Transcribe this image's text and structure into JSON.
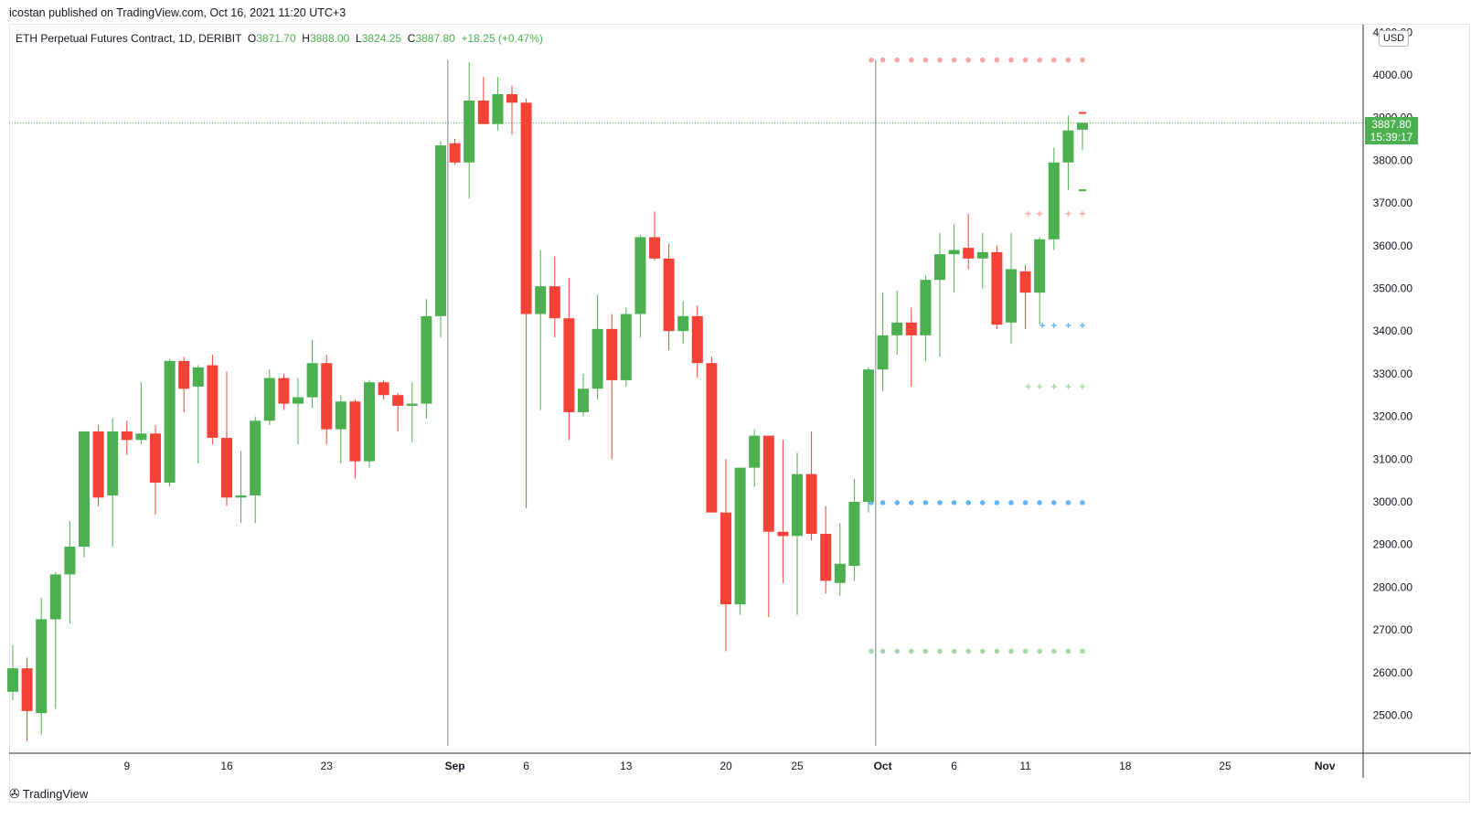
{
  "header": {
    "published": "icostan published on TradingView.com, Oct 16, 2021 11:20 UTC+3"
  },
  "legend": {
    "symbol": "ETH Perpetual Futures Contract, 1D, DERIBIT",
    "o_label": "O",
    "o_value": "3871.70",
    "h_label": "H",
    "h_value": "3888.00",
    "l_label": "L",
    "l_value": "3824.25",
    "c_label": "C",
    "c_value": "3887.80",
    "change": "+18.25 (+0.47%)"
  },
  "price_axis": {
    "currency": "USD",
    "last_price": "3887.80",
    "countdown": "15:39:17",
    "ticks": [
      "2500.00",
      "2600.00",
      "2700.00",
      "2800.00",
      "2900.00",
      "3000.00",
      "3100.00",
      "3200.00",
      "3300.00",
      "3400.00",
      "3500.00",
      "3600.00",
      "3700.00",
      "3800.00",
      "3900.00",
      "4000.00",
      "4100.00"
    ]
  },
  "time_axis": {
    "labels": [
      {
        "text": "9",
        "day": 9,
        "bold": false
      },
      {
        "text": "16",
        "day": 16,
        "bold": false
      },
      {
        "text": "23",
        "day": 23,
        "bold": false
      },
      {
        "text": "Sep",
        "day": 32,
        "bold": true
      },
      {
        "text": "6",
        "day": 37,
        "bold": false
      },
      {
        "text": "13",
        "day": 44,
        "bold": false
      },
      {
        "text": "20",
        "day": 51,
        "bold": false
      },
      {
        "text": "25",
        "day": 56,
        "bold": false
      },
      {
        "text": "Oct",
        "day": 62,
        "bold": true
      },
      {
        "text": "6",
        "day": 67,
        "bold": false
      },
      {
        "text": "11",
        "day": 72,
        "bold": false
      },
      {
        "text": "18",
        "day": 79,
        "bold": false
      },
      {
        "text": "25",
        "day": 86,
        "bold": false
      },
      {
        "text": "Nov",
        "day": 93,
        "bold": true
      }
    ]
  },
  "colors": {
    "up": "#4caf50",
    "down": "#f44336",
    "grid_separator": "#9598a1",
    "last_price_line": "#4caf50",
    "level_red": "#f7a5a5",
    "level_blue": "#64b5f6",
    "level_green": "#a5d6a7"
  },
  "chart_data": {
    "type": "candlestick",
    "title": "ETH Perpetual Futures Contract, 1D, DERIBIT",
    "x_unit": "days from Aug 1, 2021",
    "ylim": [
      2430,
      4110
    ],
    "candles": [
      {
        "d": 1,
        "o": 2555,
        "h": 2665,
        "l": 2535,
        "c": 2610
      },
      {
        "d": 2,
        "o": 2610,
        "h": 2635,
        "l": 2440,
        "c": 2510
      },
      {
        "d": 3,
        "o": 2505,
        "h": 2775,
        "l": 2455,
        "c": 2725
      },
      {
        "d": 4,
        "o": 2725,
        "h": 2835,
        "l": 2515,
        "c": 2830
      },
      {
        "d": 5,
        "o": 2830,
        "h": 2955,
        "l": 2715,
        "c": 2895
      },
      {
        "d": 6,
        "o": 2895,
        "h": 3165,
        "l": 2870,
        "c": 3165
      },
      {
        "d": 7,
        "o": 3165,
        "h": 3180,
        "l": 2990,
        "c": 3010
      },
      {
        "d": 8,
        "o": 3015,
        "h": 3195,
        "l": 2895,
        "c": 3165
      },
      {
        "d": 9,
        "o": 3165,
        "h": 3190,
        "l": 3110,
        "c": 3145
      },
      {
        "d": 10,
        "o": 3145,
        "h": 3280,
        "l": 3135,
        "c": 3160
      },
      {
        "d": 11,
        "o": 3160,
        "h": 3180,
        "l": 2970,
        "c": 3045
      },
      {
        "d": 12,
        "o": 3045,
        "h": 3335,
        "l": 3035,
        "c": 3330
      },
      {
        "d": 13,
        "o": 3330,
        "h": 3340,
        "l": 3210,
        "c": 3265
      },
      {
        "d": 14,
        "o": 3270,
        "h": 3320,
        "l": 3090,
        "c": 3315
      },
      {
        "d": 15,
        "o": 3320,
        "h": 3345,
        "l": 3135,
        "c": 3150
      },
      {
        "d": 16,
        "o": 3150,
        "h": 3305,
        "l": 2990,
        "c": 3010
      },
      {
        "d": 17,
        "o": 3010,
        "h": 3120,
        "l": 2950,
        "c": 3015
      },
      {
        "d": 18,
        "o": 3015,
        "h": 3200,
        "l": 2950,
        "c": 3190
      },
      {
        "d": 19,
        "o": 3190,
        "h": 3310,
        "l": 3180,
        "c": 3290
      },
      {
        "d": 20,
        "o": 3290,
        "h": 3300,
        "l": 3215,
        "c": 3230
      },
      {
        "d": 21,
        "o": 3230,
        "h": 3290,
        "l": 3135,
        "c": 3245
      },
      {
        "d": 22,
        "o": 3245,
        "h": 3380,
        "l": 3220,
        "c": 3325
      },
      {
        "d": 23,
        "o": 3325,
        "h": 3345,
        "l": 3135,
        "c": 3170
      },
      {
        "d": 24,
        "o": 3170,
        "h": 3250,
        "l": 3090,
        "c": 3235
      },
      {
        "d": 25,
        "o": 3235,
        "h": 3240,
        "l": 3055,
        "c": 3095
      },
      {
        "d": 26,
        "o": 3095,
        "h": 3285,
        "l": 3080,
        "c": 3280
      },
      {
        "d": 27,
        "o": 3280,
        "h": 3285,
        "l": 3240,
        "c": 3250
      },
      {
        "d": 28,
        "o": 3250,
        "h": 3255,
        "l": 3165,
        "c": 3225
      },
      {
        "d": 29,
        "o": 3225,
        "h": 3280,
        "l": 3140,
        "c": 3230
      },
      {
        "d": 30,
        "o": 3230,
        "h": 3475,
        "l": 3195,
        "c": 3435
      },
      {
        "d": 31,
        "o": 3435,
        "h": 3845,
        "l": 3385,
        "c": 3835
      },
      {
        "d": 32,
        "o": 3840,
        "h": 3850,
        "l": 3790,
        "c": 3795
      },
      {
        "d": 33,
        "o": 3795,
        "h": 4030,
        "l": 3710,
        "c": 3940
      },
      {
        "d": 34,
        "o": 3940,
        "h": 3995,
        "l": 3890,
        "c": 3885
      },
      {
        "d": 35,
        "o": 3885,
        "h": 3995,
        "l": 3870,
        "c": 3955
      },
      {
        "d": 36,
        "o": 3955,
        "h": 3975,
        "l": 3860,
        "c": 3935
      },
      {
        "d": 37,
        "o": 3935,
        "h": 3945,
        "l": 2985,
        "c": 3440
      },
      {
        "d": 38,
        "o": 3440,
        "h": 3590,
        "l": 3215,
        "c": 3505
      },
      {
        "d": 39,
        "o": 3505,
        "h": 3575,
        "l": 3385,
        "c": 3430
      },
      {
        "d": 40,
        "o": 3430,
        "h": 3525,
        "l": 3145,
        "c": 3210
      },
      {
        "d": 41,
        "o": 3210,
        "h": 3300,
        "l": 3200,
        "c": 3265
      },
      {
        "d": 42,
        "o": 3265,
        "h": 3485,
        "l": 3240,
        "c": 3405
      },
      {
        "d": 43,
        "o": 3405,
        "h": 3440,
        "l": 3100,
        "c": 3285
      },
      {
        "d": 44,
        "o": 3285,
        "h": 3455,
        "l": 3270,
        "c": 3440
      },
      {
        "d": 45,
        "o": 3440,
        "h": 3625,
        "l": 3385,
        "c": 3620
      },
      {
        "d": 46,
        "o": 3620,
        "h": 3680,
        "l": 3565,
        "c": 3570
      },
      {
        "d": 47,
        "o": 3570,
        "h": 3605,
        "l": 3355,
        "c": 3400
      },
      {
        "d": 48,
        "o": 3400,
        "h": 3470,
        "l": 3370,
        "c": 3435
      },
      {
        "d": 49,
        "o": 3435,
        "h": 3460,
        "l": 3290,
        "c": 3325
      },
      {
        "d": 50,
        "o": 3325,
        "h": 3340,
        "l": 2975,
        "c": 2975
      },
      {
        "d": 51,
        "o": 2975,
        "h": 3100,
        "l": 2650,
        "c": 2760
      },
      {
        "d": 52,
        "o": 2760,
        "h": 3080,
        "l": 2735,
        "c": 3080
      },
      {
        "d": 53,
        "o": 3080,
        "h": 3170,
        "l": 3035,
        "c": 3155
      },
      {
        "d": 54,
        "o": 3155,
        "h": 3155,
        "l": 2730,
        "c": 2930
      },
      {
        "d": 55,
        "o": 2930,
        "h": 3145,
        "l": 2810,
        "c": 2920
      },
      {
        "d": 56,
        "o": 2920,
        "h": 3115,
        "l": 2735,
        "c": 3065
      },
      {
        "d": 57,
        "o": 3065,
        "h": 3165,
        "l": 2910,
        "c": 2925
      },
      {
        "d": 58,
        "o": 2925,
        "h": 2990,
        "l": 2785,
        "c": 2815
      },
      {
        "d": 59,
        "o": 2810,
        "h": 2950,
        "l": 2780,
        "c": 2855
      },
      {
        "d": 60,
        "o": 2850,
        "h": 3055,
        "l": 2815,
        "c": 3000
      },
      {
        "d": 61,
        "o": 3000,
        "h": 3315,
        "l": 2975,
        "c": 3310
      },
      {
        "d": 62,
        "o": 3310,
        "h": 3490,
        "l": 3260,
        "c": 3390
      },
      {
        "d": 63,
        "o": 3390,
        "h": 3495,
        "l": 3345,
        "c": 3420
      },
      {
        "d": 64,
        "o": 3420,
        "h": 3455,
        "l": 3270,
        "c": 3390
      },
      {
        "d": 65,
        "o": 3390,
        "h": 3530,
        "l": 3330,
        "c": 3520
      },
      {
        "d": 66,
        "o": 3520,
        "h": 3630,
        "l": 3340,
        "c": 3580
      },
      {
        "d": 67,
        "o": 3580,
        "h": 3650,
        "l": 3490,
        "c": 3590
      },
      {
        "d": 68,
        "o": 3595,
        "h": 3675,
        "l": 3545,
        "c": 3570
      },
      {
        "d": 69,
        "o": 3570,
        "h": 3630,
        "l": 3500,
        "c": 3585
      },
      {
        "d": 70,
        "o": 3585,
        "h": 3600,
        "l": 3405,
        "c": 3415
      },
      {
        "d": 71,
        "o": 3420,
        "h": 3630,
        "l": 3370,
        "c": 3545
      },
      {
        "d": 72,
        "o": 3540,
        "h": 3555,
        "l": 3405,
        "c": 3490
      },
      {
        "d": 73,
        "o": 3490,
        "h": 3620,
        "l": 3415,
        "c": 3615
      },
      {
        "d": 74,
        "o": 3615,
        "h": 3830,
        "l": 3590,
        "c": 3795
      },
      {
        "d": 75,
        "o": 3795,
        "h": 3905,
        "l": 3730,
        "c": 3870
      },
      {
        "d": 76,
        "o": 3871.7,
        "h": 3888,
        "l": 3824.25,
        "c": 3887.8
      }
    ],
    "levels": [
      {
        "name": "upper-dotted-level",
        "style": "dot",
        "y": 4035,
        "x_from": 61,
        "x_to": 76,
        "color": "#f7a5a5"
      },
      {
        "name": "middle-dotted-level",
        "style": "dot",
        "y": 2998,
        "x_from": 61,
        "x_to": 76,
        "color": "#64b5f6"
      },
      {
        "name": "lower-dotted-level",
        "style": "dot",
        "y": 2650,
        "x_from": 61,
        "x_to": 76,
        "color": "#a5d6a7"
      },
      {
        "name": "upper-cross-level",
        "style": "cross",
        "y": 3675,
        "x_from": 72,
        "x_to": 76,
        "color": "#f7a5a5"
      },
      {
        "name": "middle-cross-level",
        "style": "cross",
        "y": 3413,
        "x_from": 73,
        "x_to": 76,
        "color": "#64b5f6"
      },
      {
        "name": "lower-cross-level",
        "style": "cross",
        "y": 3270,
        "x_from": 72,
        "x_to": 76,
        "color": "#a5d6a7"
      }
    ],
    "separators": [
      {
        "name": "september-separator",
        "x": 31.5,
        "y_top": 4035
      },
      {
        "name": "october-separator",
        "x": 61.5,
        "y_top": 4035
      }
    ],
    "markers": [
      {
        "name": "red-dash-marker",
        "x": 76,
        "y": 3911,
        "color": "#f44336"
      },
      {
        "name": "green-dash-marker",
        "x": 76,
        "y": 3730,
        "color": "#4caf50"
      }
    ],
    "last_price": 3887.8
  }
}
